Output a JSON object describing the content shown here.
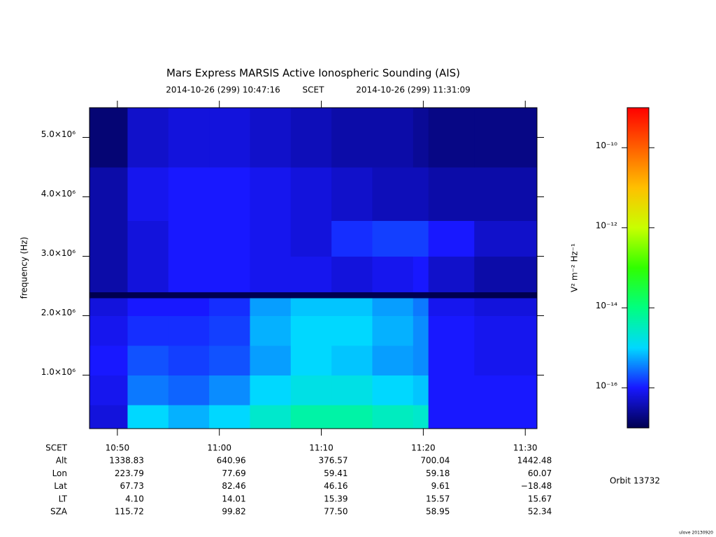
{
  "chart_data": {
    "type": "heatmap",
    "title": "Mars Express MARSIS Active Ionospheric Sounding (AIS)",
    "start_time": "2014-10-26 (299) 10:47:16",
    "time_label": "SCET",
    "end_time": "2014-10-26 (299) 11:31:09",
    "y_label": "frequency (Hz)",
    "xlim": [
      "10:47:16",
      "11:31:09"
    ],
    "xticks": [
      "10:50",
      "11:00",
      "11:10",
      "11:20",
      "11:30"
    ],
    "ylim": [
      100000,
      5500000
    ],
    "yticks": [
      {
        "value": 1000000,
        "label": "1.0×10⁶"
      },
      {
        "value": 2000000,
        "label": "2.0×10⁶"
      },
      {
        "value": 3000000,
        "label": "3.0×10⁶"
      },
      {
        "value": 4000000,
        "label": "4.0×10⁶"
      },
      {
        "value": 5000000,
        "label": "5.0×10⁶"
      }
    ],
    "x_bins": [
      "10:47:16",
      "10:51",
      "10:55",
      "10:59",
      "11:03",
      "11:07",
      "11:11",
      "11:15",
      "11:19",
      "11:20:30",
      "11:25",
      "11:31:09"
    ],
    "y_bins": [
      100000,
      500000,
      1000000,
      1500000,
      2000000,
      2300000,
      2400000,
      3000000,
      3600000,
      4500000,
      5500000
    ],
    "z": [
      [
        6.3e-17,
        1e-15,
        6.3e-16,
        1e-15,
        2.5e-15,
        5e-15,
        5e-15,
        3.2e-15,
        2.5e-15,
        1e-16,
        1e-16
      ],
      [
        8e-17,
        3.2e-16,
        2.5e-16,
        4e-16,
        1e-15,
        1.6e-15,
        1.6e-15,
        1e-15,
        8e-16,
        1e-16,
        1e-16
      ],
      [
        1e-16,
        2e-16,
        1.6e-16,
        2e-16,
        5e-16,
        1e-15,
        8e-16,
        5e-16,
        4e-16,
        1e-16,
        8e-17
      ],
      [
        8e-17,
        1.3e-16,
        1.3e-16,
        1.6e-16,
        6.3e-16,
        1e-15,
        1e-15,
        6.3e-16,
        4e-16,
        1e-16,
        8e-17
      ],
      [
        6.3e-17,
        1e-16,
        1e-16,
        1.3e-16,
        5e-16,
        8e-16,
        8e-16,
        5e-16,
        3.2e-16,
        8e-17,
        6.3e-17
      ],
      [
        1e-17,
        1e-17,
        1e-17,
        1e-17,
        1e-17,
        1e-17,
        1e-17,
        1e-17,
        1e-17,
        1e-17,
        1e-17
      ],
      [
        3.2e-17,
        6.3e-17,
        1e-16,
        1e-16,
        8e-17,
        8e-17,
        6.3e-17,
        8e-17,
        1e-16,
        5e-17,
        3.2e-17
      ],
      [
        3.2e-17,
        6.3e-17,
        1e-16,
        1e-16,
        8e-17,
        6.3e-17,
        1.3e-16,
        1.6e-16,
        1.6e-16,
        1e-16,
        5e-17
      ],
      [
        3.2e-17,
        8e-17,
        1e-16,
        1e-16,
        8e-17,
        6.3e-17,
        5e-17,
        4e-17,
        4e-17,
        3.2e-17,
        3.2e-17
      ],
      [
        1.6e-17,
        5e-17,
        6.3e-17,
        6.3e-17,
        5e-17,
        4e-17,
        3.2e-17,
        3.2e-17,
        2.5e-17,
        2e-17,
        2e-17
      ]
    ],
    "zlim": [
      1e-17,
      1e-09
    ],
    "zscale": "log",
    "zticks": [
      {
        "value": 1e-16,
        "label": "10⁻¹⁶"
      },
      {
        "value": 1e-14,
        "label": "10⁻¹⁴"
      },
      {
        "value": 1e-12,
        "label": "10⁻¹²"
      },
      {
        "value": 1e-10,
        "label": "10⁻¹⁰"
      }
    ],
    "z_label": "V² m⁻² Hz⁻¹",
    "colormap": [
      "#000050",
      "#1818ff",
      "#00d8ff",
      "#00ff80",
      "#30ff00",
      "#c8ff00",
      "#ffc000",
      "#ff6000",
      "#ff0000"
    ],
    "ephemeris": {
      "row_labels": [
        "SCET",
        "Alt",
        "Lon",
        "Lat",
        "LT",
        "SZA"
      ],
      "rows": [
        [
          "1338.83",
          "640.96",
          "376.57",
          "700.04",
          "1442.48"
        ],
        [
          "223.79",
          "77.69",
          "59.41",
          "59.18",
          "60.07"
        ],
        [
          "67.73",
          "82.46",
          "46.16",
          "9.61",
          "−18.48"
        ],
        [
          "4.10",
          "14.01",
          "15.39",
          "15.57",
          "15.67"
        ],
        [
          "115.72",
          "99.82",
          "77.50",
          "58.95",
          "52.34"
        ]
      ]
    },
    "orbit": "Orbit 13732",
    "credit": "ulove 20130920"
  }
}
